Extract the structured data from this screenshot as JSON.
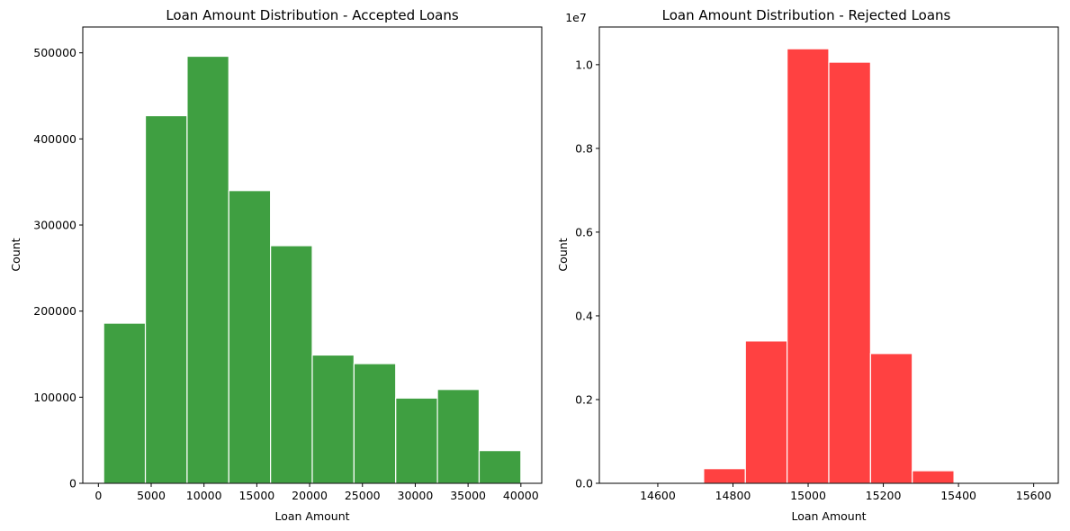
{
  "chart_data": [
    {
      "type": "bar",
      "subtype": "histogram",
      "title": "Loan Amount Distribution - Accepted Loans",
      "xlabel": "Loan Amount",
      "ylabel": "Count",
      "color": "#3f9f41",
      "edge_color": "#ffffff",
      "bin_edges": [
        500,
        4450,
        8400,
        12350,
        16300,
        20250,
        24200,
        28150,
        32100,
        36050,
        40000
      ],
      "values": [
        186000,
        427000,
        496000,
        340000,
        276000,
        149000,
        139000,
        99000,
        109000,
        38000
      ],
      "xlim": [
        -1475,
        41975
      ],
      "ylim": [
        0,
        530000
      ],
      "xticks": [
        0,
        5000,
        10000,
        15000,
        20000,
        25000,
        30000,
        35000,
        40000
      ],
      "yticks": [
        0,
        100000,
        200000,
        300000,
        400000,
        500000
      ],
      "ytick_labels": [
        "0",
        "100000",
        "200000",
        "300000",
        "400000",
        "500000"
      ],
      "grid": false,
      "legend": "none"
    },
    {
      "type": "bar",
      "subtype": "histogram",
      "title": "Loan Amount Distribution - Rejected Loans",
      "xlabel": "Loan Amount",
      "ylabel": "Count",
      "scale_label": "1e7",
      "color": "#ff4141",
      "edge_color": "#ffffff",
      "bin_edges": [
        14500,
        14611,
        14722,
        14833,
        14944,
        15055,
        15166,
        15277,
        15388,
        15499,
        15610
      ],
      "values": [
        0,
        10000,
        350000,
        3400000,
        10380000,
        10060000,
        3100000,
        300000,
        10000,
        0
      ],
      "xlim": [
        14444.5,
        15665.5
      ],
      "ylim": [
        0,
        10900000
      ],
      "xticks": [
        14600,
        14800,
        15000,
        15200,
        15400,
        15600
      ],
      "yticks": [
        0,
        2000000,
        4000000,
        6000000,
        8000000,
        10000000
      ],
      "ytick_labels": [
        "0.0",
        "0.2",
        "0.4",
        "0.6",
        "0.8",
        "1.0"
      ],
      "grid": false,
      "legend": "none"
    }
  ]
}
